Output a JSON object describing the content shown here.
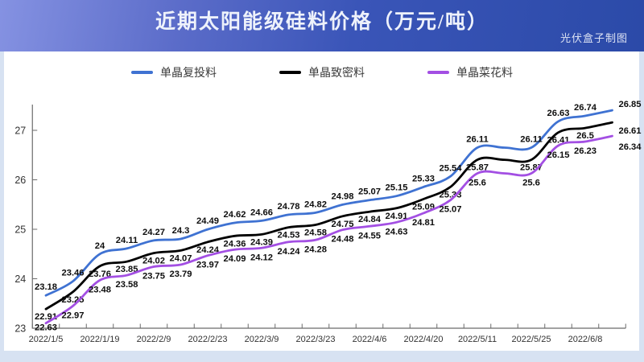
{
  "header": {
    "title": "近期太阳能级硅料价格（万元/吨）",
    "watermark": "光伏盒子制图"
  },
  "chart_data": {
    "type": "line",
    "title": "近期太阳能级硅料价格（万元/吨）",
    "smooth": true,
    "grid": false,
    "legend_position": "top",
    "n_points": 22,
    "x_tick_labels": [
      "2022/1/5",
      "2022/1/19",
      "2022/2/9",
      "2022/2/23",
      "2022/3/9",
      "2022/3/23",
      "2022/4/6",
      "2022/4/20",
      "2022/5/11",
      "2022/5/25",
      "2022/6/8"
    ],
    "x_tick_every": 2,
    "y_ticks": [
      23,
      24,
      25,
      26,
      27
    ],
    "ylim": [
      22.5,
      27.5
    ],
    "series": [
      {
        "name": "单晶复投料",
        "color": "#3f72d2",
        "values": [
          23.18,
          23.46,
          24.0,
          24.11,
          24.27,
          24.3,
          24.49,
          24.62,
          24.66,
          24.78,
          24.82,
          24.98,
          25.07,
          25.15,
          25.33,
          25.54,
          26.11,
          26.11,
          26.11,
          26.63,
          26.74,
          26.85
        ],
        "labels": [
          "23.18",
          "23.46",
          "24",
          "24.11",
          "24.27",
          "24.3",
          "24.49",
          "24.62",
          "24.66",
          "24.78",
          "24.82",
          "24.98",
          "25.07",
          "25.15",
          "25.33",
          "25.54",
          "26.11",
          "",
          "26.11",
          "26.63",
          "26.74",
          "26.85"
        ]
      },
      {
        "name": "单晶致密料",
        "color": "#000000",
        "values": [
          22.91,
          23.25,
          23.76,
          23.85,
          24.02,
          24.07,
          24.24,
          24.36,
          24.39,
          24.53,
          24.58,
          24.75,
          24.84,
          24.91,
          25.09,
          25.33,
          25.87,
          25.87,
          25.87,
          26.41,
          26.5,
          26.61
        ],
        "labels": [
          "22.91",
          "23.25",
          "23.76",
          "23.85",
          "24.02",
          "24.07",
          "24.24",
          "24.36",
          "24.39",
          "24.53",
          "24.58",
          "24.75",
          "24.84",
          "24.91",
          "25.09",
          "25.33",
          "25.87",
          "",
          "25.87",
          "26.41",
          "26.5",
          "26.61"
        ]
      },
      {
        "name": "单晶菜花料",
        "color": "#a34fe3",
        "values": [
          22.63,
          22.97,
          23.48,
          23.58,
          23.75,
          23.79,
          23.97,
          24.09,
          24.12,
          24.24,
          24.28,
          24.48,
          24.55,
          24.63,
          24.81,
          25.07,
          25.6,
          25.6,
          25.6,
          26.15,
          26.23,
          26.34
        ],
        "labels": [
          "22.63",
          "22.97",
          "23.48",
          "23.58",
          "23.75",
          "23.79",
          "23.97",
          "24.09",
          "24.12",
          "24.24",
          "24.28",
          "24.48",
          "24.55",
          "24.63",
          "24.81",
          "25.07",
          "25.6",
          "",
          "25.6",
          "26.15",
          "26.23",
          "26.34"
        ]
      }
    ]
  }
}
